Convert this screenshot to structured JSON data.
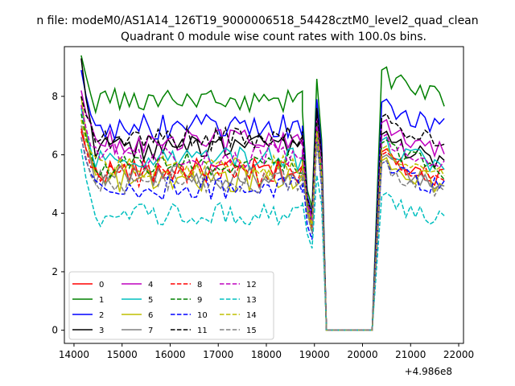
{
  "chart_data": {
    "type": "line",
    "suptitle": "n file: modeM0/AS1A14_126T19_9000006518_54428cztM0_level2_quad_clean",
    "title": "Quadrant 0 module wise count rates with 100.0s bins.",
    "xlabel": "",
    "ylabel": "",
    "x_offset_label": "+4.986e8",
    "xlim": [
      13800,
      22100
    ],
    "ylim": [
      -0.45,
      9.7
    ],
    "xticks": [
      14000,
      15000,
      16000,
      17000,
      18000,
      19000,
      20000,
      21000,
      22000
    ],
    "xtick_labels": [
      "14000",
      "15000",
      "16000",
      "17000",
      "18000",
      "19000",
      "20000",
      "21000",
      "22000"
    ],
    "yticks": [
      0,
      2,
      4,
      6,
      8
    ],
    "ytick_labels": [
      "0",
      "2",
      "4",
      "6",
      "8"
    ],
    "legend": {
      "placement": "lower-left",
      "columns": 4
    },
    "time": {
      "start1": 14150,
      "end1": 18750,
      "gap_start": 19300,
      "gap_end": 20250,
      "start2": 20400,
      "end2": 21650,
      "step": 100
    },
    "dip_x": [
      18750,
      18850,
      18950,
      19050,
      19150,
      19250
    ],
    "series": [
      {
        "name": "0",
        "color": "#ff0000",
        "dash": "solid",
        "level": 5.45,
        "seg2": 5.9,
        "start": 6.8,
        "dip": [
          6.0,
          4.5,
          3.6,
          7.0,
          5.3,
          0
        ]
      },
      {
        "name": "1",
        "color": "#008000",
        "dash": "solid",
        "level": 7.85,
        "seg2": 8.7,
        "start": 9.4,
        "dip": [
          7.5,
          4.8,
          4.2,
          8.6,
          6.5,
          0
        ]
      },
      {
        "name": "2",
        "color": "#0000ff",
        "dash": "solid",
        "level": 6.95,
        "seg2": 7.6,
        "start": 8.9,
        "dip": [
          7.0,
          4.6,
          4.0,
          7.9,
          6.2,
          0
        ]
      },
      {
        "name": "3",
        "color": "#000000",
        "dash": "solid",
        "level": 6.25,
        "seg2": 6.5,
        "start": 9.3,
        "dip": [
          6.7,
          4.3,
          3.9,
          7.6,
          6.0,
          0
        ]
      },
      {
        "name": "4",
        "color": "#bf00bf",
        "dash": "solid",
        "level": 6.45,
        "seg2": 6.9,
        "start": 8.2,
        "dip": [
          6.6,
          4.4,
          3.8,
          7.3,
          5.8,
          0
        ]
      },
      {
        "name": "5",
        "color": "#00bfbf",
        "dash": "solid",
        "level": 5.85,
        "seg2": 6.3,
        "start": 7.6,
        "dip": [
          6.1,
          4.2,
          3.5,
          7.0,
          5.6,
          0
        ]
      },
      {
        "name": "6",
        "color": "#bfbf00",
        "dash": "solid",
        "level": 5.15,
        "seg2": 5.6,
        "start": 8.0,
        "dip": [
          5.9,
          4.0,
          3.4,
          6.8,
          5.2,
          0
        ]
      },
      {
        "name": "7",
        "color": "#808080",
        "dash": "solid",
        "level": 5.25,
        "seg2": 5.7,
        "start": 7.0,
        "dip": [
          5.8,
          4.1,
          3.6,
          6.6,
          5.1,
          0
        ]
      },
      {
        "name": "8",
        "color": "#ff0000",
        "dash": "dashed",
        "level": 5.35,
        "seg2": 5.8,
        "start": 6.9,
        "dip": [
          5.9,
          4.3,
          3.5,
          6.9,
          5.2,
          0
        ]
      },
      {
        "name": "9",
        "color": "#008000",
        "dash": "dashed",
        "level": 5.65,
        "seg2": 6.2,
        "start": 7.4,
        "dip": [
          6.0,
          4.4,
          3.6,
          7.1,
          5.4,
          0
        ]
      },
      {
        "name": "10",
        "color": "#0000ff",
        "dash": "dashed",
        "level": 4.85,
        "seg2": 5.5,
        "start": 6.6,
        "dip": [
          5.4,
          3.6,
          3.1,
          6.5,
          4.9,
          0
        ]
      },
      {
        "name": "11",
        "color": "#000000",
        "dash": "dashed",
        "level": 6.55,
        "seg2": 7.1,
        "start": 8.0,
        "dip": [
          6.8,
          4.5,
          4.0,
          7.5,
          6.0,
          0
        ]
      },
      {
        "name": "12",
        "color": "#bf00bf",
        "dash": "dashed",
        "level": 5.95,
        "seg2": 6.4,
        "start": 7.7,
        "dip": [
          6.2,
          4.3,
          3.7,
          7.0,
          5.6,
          0
        ]
      },
      {
        "name": "13",
        "color": "#00bfbf",
        "dash": "dashed",
        "level": 3.95,
        "seg2": 4.4,
        "start": 6.2,
        "dip": [
          4.4,
          3.3,
          2.8,
          5.3,
          4.3,
          0
        ]
      },
      {
        "name": "14",
        "color": "#bfbf00",
        "dash": "dashed",
        "level": 5.55,
        "seg2": 6.0,
        "start": 7.2,
        "dip": [
          5.8,
          4.2,
          3.6,
          6.8,
          5.3,
          0
        ]
      },
      {
        "name": "15",
        "color": "#808080",
        "dash": "dashed",
        "level": 5.05,
        "seg2": 5.5,
        "start": 6.6,
        "dip": [
          5.5,
          4.0,
          3.3,
          6.4,
          5.0,
          0
        ]
      }
    ]
  }
}
